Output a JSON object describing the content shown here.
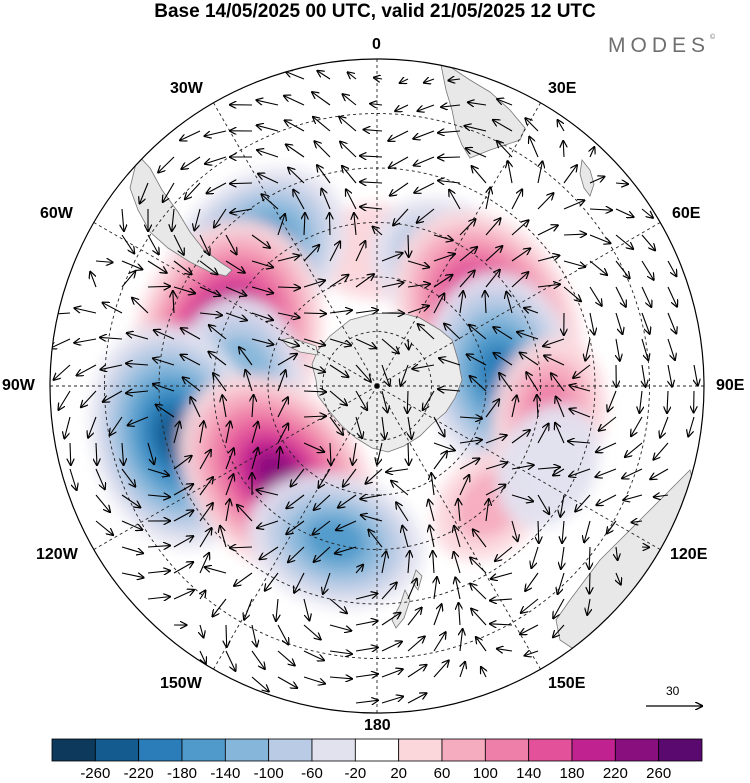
{
  "title": "Base 14/05/2025 00 UTC, valid 21/05/2025 12 UTC",
  "brand": "MODES",
  "brand_mark": "©",
  "lon_labels": {
    "lon_0": "0",
    "lon_30e": "30E",
    "lon_60e": "60E",
    "lon_90e": "90E",
    "lon_120e": "120E",
    "lon_150e": "150E",
    "lon_180": "180",
    "lon_150w": "150W",
    "lon_120w": "120W",
    "lon_90w": "90W",
    "lon_60w": "60W",
    "lon_30w": "30W"
  },
  "vector_scale": {
    "value": "30"
  },
  "colorbar": {
    "ticks": [
      "-260",
      "-220",
      "-180",
      "-140",
      "-100",
      "-60",
      "-20",
      "20",
      "60",
      "100",
      "140",
      "180",
      "220",
      "260"
    ],
    "colors": [
      "#0d3a5c",
      "#145c8f",
      "#2a7db8",
      "#4f9acb",
      "#86b6da",
      "#b9cbe5",
      "#e2e2ef",
      "#ffffff",
      "#fbd7dc",
      "#f5acbf",
      "#ee7fa8",
      "#e2519a",
      "#c02290",
      "#8a0f7e",
      "#5a0a6e"
    ]
  },
  "anomaly_centers": [
    {
      "lon": 0,
      "lat": -53,
      "value": 50
    },
    {
      "lon": 34,
      "lat": -52,
      "value": -160
    },
    {
      "lon": 58,
      "lat": -54,
      "value": 240
    },
    {
      "lon": 84,
      "lat": -56,
      "value": -190
    },
    {
      "lon": 99,
      "lat": -42,
      "value": 110
    },
    {
      "lon": -43,
      "lat": -41,
      "value": -180
    },
    {
      "lon": -74,
      "lat": -47,
      "value": 250
    },
    {
      "lon": -90,
      "lat": -52,
      "value": -140
    },
    {
      "lon": -104,
      "lat": -33,
      "value": -240
    },
    {
      "lon": -132,
      "lat": -53,
      "value": 230
    },
    {
      "lon": -165,
      "lat": -46,
      "value": -150
    },
    {
      "lon": 136,
      "lat": -45,
      "value": 60
    },
    {
      "lon": 115,
      "lat": -38,
      "value": -60
    }
  ]
}
